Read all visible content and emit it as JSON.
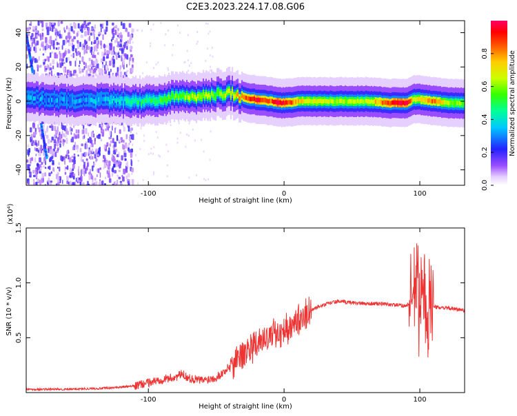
{
  "title": "C2E3.2023.224.17.08.G06",
  "chart_data": [
    {
      "type": "heatmap",
      "xlabel": "Height of straight line (km)",
      "ylabel": "Frequency (Hz)",
      "xlim": [
        -190,
        133
      ],
      "ylim": [
        -49,
        47
      ],
      "xticks": [
        -100,
        0,
        100
      ],
      "xtick_labels": [
        "-100",
        "0",
        "100"
      ],
      "yticks": [
        -40,
        -20,
        0,
        20,
        40
      ],
      "ytick_labels": [
        "-40",
        "-20",
        "0",
        "20",
        "40"
      ],
      "colorbar": {
        "label": "Normalized spectral amplitude",
        "range": [
          0,
          1
        ],
        "ticks": [
          0.0,
          0.2,
          0.4,
          0.6,
          0.8
        ],
        "tick_labels": [
          "0.0",
          "0.2",
          "0.4",
          "0.6",
          "0.8"
        ]
      },
      "ridge": {
        "x": [
          -190,
          -170,
          -150,
          -130,
          -115,
          -100,
          -90,
          -80,
          -70,
          -60,
          -50,
          -40,
          -35,
          -30,
          -20,
          -10,
          -5,
          0,
          10,
          20,
          40,
          60,
          80,
          90,
          95,
          100,
          110,
          120,
          133
        ],
        "freq": [
          2,
          1,
          0,
          1,
          0,
          0,
          1,
          3,
          2,
          3,
          4,
          5,
          3,
          2,
          1,
          0,
          -1,
          -1,
          0,
          0,
          0,
          0,
          -1,
          -1,
          1,
          1,
          0,
          -1,
          -1
        ],
        "amplitude": [
          0.3,
          0.3,
          0.3,
          0.35,
          0.4,
          0.45,
          0.5,
          0.55,
          0.6,
          0.6,
          0.55,
          0.65,
          0.7,
          0.8,
          0.9,
          0.8,
          0.95,
          0.9,
          0.7,
          0.65,
          0.6,
          0.6,
          0.9,
          0.95,
          0.6,
          0.7,
          0.8,
          0.6,
          0.55
        ]
      }
    },
    {
      "type": "line",
      "xlabel": "Height of straight line (km)",
      "ylabel": "SNR (10 * v/v)",
      "yscale_label": "(x10⁴)",
      "xlim": [
        -190,
        133
      ],
      "ylim": [
        0,
        1.5
      ],
      "xticks": [
        -100,
        0,
        100
      ],
      "xtick_labels": [
        "-100",
        "0",
        "100"
      ],
      "yticks": [
        0.5,
        1.0,
        1.5
      ],
      "ytick_labels": [
        "0.5",
        "1.0",
        "1.5"
      ],
      "series": [
        {
          "name": "SNR",
          "color": "#ee3333",
          "x": [
            -190,
            -160,
            -130,
            -110,
            -100,
            -90,
            -80,
            -75,
            -70,
            -60,
            -50,
            -45,
            -40,
            -35,
            -30,
            -25,
            -20,
            -15,
            -10,
            -5,
            0,
            5,
            10,
            15,
            20,
            25,
            30,
            35,
            40,
            50,
            60,
            70,
            80,
            90,
            95,
            98,
            100,
            102,
            105,
            108,
            110,
            120,
            133
          ],
          "y": [
            0.03,
            0.03,
            0.04,
            0.06,
            0.09,
            0.12,
            0.14,
            0.17,
            0.13,
            0.11,
            0.14,
            0.18,
            0.24,
            0.31,
            0.36,
            0.4,
            0.44,
            0.47,
            0.51,
            0.55,
            0.58,
            0.61,
            0.65,
            0.7,
            0.75,
            0.78,
            0.8,
            0.82,
            0.83,
            0.82,
            0.81,
            0.81,
            0.8,
            0.79,
            0.85,
            1.1,
            0.6,
            1.3,
            0.4,
            1.0,
            0.78,
            0.77,
            0.75
          ]
        }
      ]
    }
  ]
}
